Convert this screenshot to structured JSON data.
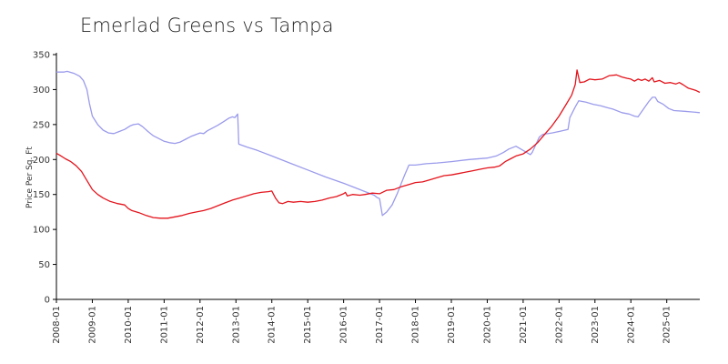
{
  "chart_data": {
    "type": "line",
    "title": "Emerlad Greens vs Tampa",
    "xlabel": "",
    "ylabel": "Price Per Sq. Ft",
    "ylim": [
      0,
      350
    ],
    "yticks": [
      0,
      50,
      100,
      150,
      200,
      250,
      300,
      350
    ],
    "xticks": [
      "2008-01",
      "2009-01",
      "2010-01",
      "2011-01",
      "2012-01",
      "2013-01",
      "2014-01",
      "2015-01",
      "2016-01",
      "2017-01",
      "2018-01",
      "2019-01",
      "2020-01",
      "2021-01",
      "2022-01",
      "2023-01",
      "2024-01",
      "2025-01"
    ],
    "xrange": [
      2008.0,
      2025.92
    ],
    "grid": false,
    "series": [
      {
        "name": "Emerlad Greens",
        "color": "#9b9bec",
        "points": [
          [
            2008.0,
            325
          ],
          [
            2008.2,
            325
          ],
          [
            2008.3,
            326
          ],
          [
            2008.5,
            323
          ],
          [
            2008.65,
            319
          ],
          [
            2008.75,
            313
          ],
          [
            2008.85,
            300
          ],
          [
            2008.92,
            280
          ],
          [
            2009.0,
            262
          ],
          [
            2009.15,
            250
          ],
          [
            2009.3,
            242
          ],
          [
            2009.45,
            238
          ],
          [
            2009.6,
            237
          ],
          [
            2009.75,
            240
          ],
          [
            2009.9,
            243
          ],
          [
            2010.05,
            248
          ],
          [
            2010.15,
            250
          ],
          [
            2010.28,
            251
          ],
          [
            2010.4,
            247
          ],
          [
            2010.55,
            240
          ],
          [
            2010.7,
            234
          ],
          [
            2010.85,
            230
          ],
          [
            2011.0,
            226
          ],
          [
            2011.15,
            224
          ],
          [
            2011.3,
            223
          ],
          [
            2011.45,
            225
          ],
          [
            2011.6,
            229
          ],
          [
            2011.75,
            233
          ],
          [
            2011.9,
            236
          ],
          [
            2012.0,
            238
          ],
          [
            2012.1,
            237
          ],
          [
            2012.2,
            241
          ],
          [
            2012.35,
            245
          ],
          [
            2012.5,
            249
          ],
          [
            2012.65,
            254
          ],
          [
            2012.8,
            259
          ],
          [
            2012.9,
            261
          ],
          [
            2012.97,
            260
          ],
          [
            2013.05,
            265
          ],
          [
            2013.08,
            222
          ],
          [
            2013.3,
            218
          ],
          [
            2013.6,
            213
          ],
          [
            2014.0,
            205
          ],
          [
            2014.5,
            195
          ],
          [
            2015.0,
            185
          ],
          [
            2015.5,
            175
          ],
          [
            2016.0,
            166
          ],
          [
            2016.3,
            160
          ],
          [
            2016.6,
            154
          ],
          [
            2016.85,
            149
          ],
          [
            2016.92,
            146
          ],
          [
            2017.0,
            144
          ],
          [
            2017.08,
            120
          ],
          [
            2017.2,
            125
          ],
          [
            2017.35,
            135
          ],
          [
            2017.5,
            152
          ],
          [
            2017.6,
            165
          ],
          [
            2017.7,
            178
          ],
          [
            2017.82,
            192
          ],
          [
            2018.0,
            192
          ],
          [
            2018.3,
            194
          ],
          [
            2018.6,
            195
          ],
          [
            2019.0,
            197
          ],
          [
            2019.5,
            200
          ],
          [
            2020.0,
            202
          ],
          [
            2020.25,
            205
          ],
          [
            2020.45,
            210
          ],
          [
            2020.6,
            215
          ],
          [
            2020.8,
            219
          ],
          [
            2021.0,
            213
          ],
          [
            2021.2,
            207
          ],
          [
            2021.25,
            210
          ],
          [
            2021.45,
            232
          ],
          [
            2021.55,
            236
          ],
          [
            2021.8,
            238
          ],
          [
            2022.0,
            240
          ],
          [
            2022.25,
            243
          ],
          [
            2022.3,
            260
          ],
          [
            2022.45,
            275
          ],
          [
            2022.55,
            284
          ],
          [
            2022.75,
            282
          ],
          [
            2022.95,
            279
          ],
          [
            2023.15,
            277
          ],
          [
            2023.35,
            274
          ],
          [
            2023.5,
            272
          ],
          [
            2023.75,
            267
          ],
          [
            2023.95,
            265
          ],
          [
            2024.1,
            262
          ],
          [
            2024.2,
            261
          ],
          [
            2024.35,
            272
          ],
          [
            2024.5,
            283
          ],
          [
            2024.6,
            289
          ],
          [
            2024.68,
            289
          ],
          [
            2024.75,
            283
          ],
          [
            2024.9,
            279
          ],
          [
            2025.05,
            273
          ],
          [
            2025.2,
            270
          ],
          [
            2025.5,
            269
          ],
          [
            2025.7,
            268
          ],
          [
            2025.92,
            267
          ]
        ]
      },
      {
        "name": "Tampa",
        "color": "#e3141c",
        "points": [
          [
            2008.0,
            209
          ],
          [
            2008.1,
            206
          ],
          [
            2008.25,
            201
          ],
          [
            2008.4,
            197
          ],
          [
            2008.55,
            191
          ],
          [
            2008.7,
            183
          ],
          [
            2008.85,
            170
          ],
          [
            2009.0,
            157
          ],
          [
            2009.15,
            150
          ],
          [
            2009.3,
            145
          ],
          [
            2009.5,
            140
          ],
          [
            2009.7,
            137
          ],
          [
            2009.9,
            135
          ],
          [
            2010.0,
            130
          ],
          [
            2010.1,
            127
          ],
          [
            2010.3,
            124
          ],
          [
            2010.5,
            120
          ],
          [
            2010.7,
            117
          ],
          [
            2010.9,
            116
          ],
          [
            2011.1,
            116
          ],
          [
            2011.3,
            118
          ],
          [
            2011.5,
            120
          ],
          [
            2011.7,
            123
          ],
          [
            2011.9,
            125
          ],
          [
            2012.1,
            127
          ],
          [
            2012.3,
            130
          ],
          [
            2012.5,
            134
          ],
          [
            2012.7,
            138
          ],
          [
            2012.9,
            142
          ],
          [
            2013.1,
            145
          ],
          [
            2013.3,
            148
          ],
          [
            2013.5,
            151
          ],
          [
            2013.7,
            153
          ],
          [
            2013.9,
            154
          ],
          [
            2014.0,
            155
          ],
          [
            2014.1,
            145
          ],
          [
            2014.2,
            138
          ],
          [
            2014.3,
            137
          ],
          [
            2014.45,
            140
          ],
          [
            2014.6,
            139
          ],
          [
            2014.8,
            140
          ],
          [
            2015.0,
            139
          ],
          [
            2015.2,
            140
          ],
          [
            2015.4,
            142
          ],
          [
            2015.6,
            145
          ],
          [
            2015.8,
            147
          ],
          [
            2016.0,
            151
          ],
          [
            2016.05,
            153
          ],
          [
            2016.1,
            148
          ],
          [
            2016.25,
            150
          ],
          [
            2016.45,
            149
          ],
          [
            2016.6,
            150
          ],
          [
            2016.8,
            152
          ],
          [
            2017.0,
            151
          ],
          [
            2017.2,
            156
          ],
          [
            2017.4,
            157
          ],
          [
            2017.6,
            161
          ],
          [
            2017.8,
            164
          ],
          [
            2018.0,
            167
          ],
          [
            2018.2,
            168
          ],
          [
            2018.4,
            171
          ],
          [
            2018.6,
            174
          ],
          [
            2018.8,
            177
          ],
          [
            2019.0,
            178
          ],
          [
            2019.2,
            180
          ],
          [
            2019.4,
            182
          ],
          [
            2019.6,
            184
          ],
          [
            2019.8,
            186
          ],
          [
            2020.0,
            188
          ],
          [
            2020.2,
            189
          ],
          [
            2020.35,
            191
          ],
          [
            2020.5,
            197
          ],
          [
            2020.65,
            201
          ],
          [
            2020.8,
            205
          ],
          [
            2021.0,
            208
          ],
          [
            2021.2,
            215
          ],
          [
            2021.4,
            224
          ],
          [
            2021.6,
            236
          ],
          [
            2021.8,
            248
          ],
          [
            2022.0,
            262
          ],
          [
            2022.2,
            279
          ],
          [
            2022.35,
            292
          ],
          [
            2022.45,
            307
          ],
          [
            2022.5,
            328
          ],
          [
            2022.58,
            310
          ],
          [
            2022.7,
            311
          ],
          [
            2022.85,
            315
          ],
          [
            2023.0,
            314
          ],
          [
            2023.2,
            315
          ],
          [
            2023.4,
            320
          ],
          [
            2023.6,
            321
          ],
          [
            2023.75,
            318
          ],
          [
            2023.9,
            316
          ],
          [
            2024.0,
            315
          ],
          [
            2024.1,
            312
          ],
          [
            2024.2,
            315
          ],
          [
            2024.3,
            313
          ],
          [
            2024.4,
            315
          ],
          [
            2024.5,
            312
          ],
          [
            2024.6,
            317
          ],
          [
            2024.65,
            311
          ],
          [
            2024.8,
            313
          ],
          [
            2024.95,
            309
          ],
          [
            2025.1,
            310
          ],
          [
            2025.25,
            308
          ],
          [
            2025.35,
            310
          ],
          [
            2025.45,
            307
          ],
          [
            2025.6,
            302
          ],
          [
            2025.8,
            299
          ],
          [
            2025.92,
            296
          ]
        ]
      }
    ]
  }
}
